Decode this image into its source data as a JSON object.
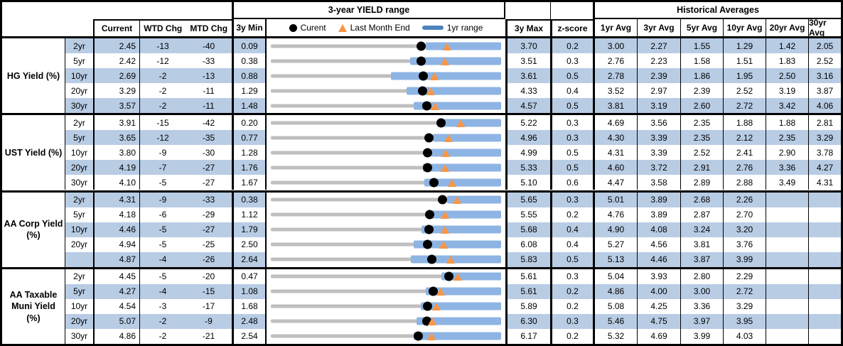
{
  "header": {
    "range_title": "3-year YIELD range",
    "historical_title": "Historical Averages",
    "col_current": "Current",
    "col_wtd": "WTD Chg",
    "col_mtd": "MTD Chg",
    "col_min": "3y Min",
    "col_max": "3y Max",
    "col_zscore": "z-score",
    "avg_cols": [
      "1yr Avg",
      "3yr Avg",
      "5yr Avg",
      "10yr Avg",
      "20yr Avg",
      "30yr Avg"
    ],
    "legend": {
      "current": "Curent",
      "last_month_end": "Last Month End",
      "range": "1yr range"
    }
  },
  "colors": {
    "stripe": "#B8CCE4",
    "range_bar": "#8EB4E3",
    "legend_dash": "#4F81BD",
    "triangle": "#F79646",
    "track": "#BFBFBF",
    "dot": "#000000"
  },
  "chart_data": {
    "type": "table",
    "title": "3-year YIELD range",
    "legend_entries": [
      "Curent",
      "Last Month End",
      "1yr range"
    ],
    "row_chart_type": "bullet-range: gray track spans 3y Min..3y Max, blue bar = 1yr range, black dot = Current, orange triangle = Last Month End",
    "sections": [
      {
        "label": "HG Yield (%)",
        "rows": [
          {
            "tenor": "2yr",
            "current": "2.45",
            "wtd_chg": "-13",
            "mtd_chg": "-40",
            "min_3y": "0.09",
            "max_3y": "3.70",
            "z_score": "0.2",
            "avgs": [
              "3.00",
              "2.27",
              "1.55",
              "1.29",
              "1.42",
              "2.05"
            ],
            "last_month_end": 2.85,
            "range_1y": [
              2.52,
              3.7
            ]
          },
          {
            "tenor": "5yr",
            "current": "2.42",
            "wtd_chg": "-12",
            "mtd_chg": "-33",
            "min_3y": "0.38",
            "max_3y": "3.51",
            "z_score": "0.3",
            "avgs": [
              "2.76",
              "2.23",
              "1.58",
              "1.51",
              "1.83",
              "2.52"
            ],
            "last_month_end": 2.75,
            "range_1y": [
              2.27,
              3.51
            ]
          },
          {
            "tenor": "10yr",
            "current": "2.69",
            "wtd_chg": "-2",
            "mtd_chg": "-13",
            "min_3y": "0.88",
            "max_3y": "3.61",
            "z_score": "0.5",
            "avgs": [
              "2.78",
              "2.39",
              "1.86",
              "1.95",
              "2.50",
              "3.16"
            ],
            "last_month_end": 2.82,
            "range_1y": [
              2.3,
              3.61
            ]
          },
          {
            "tenor": "20yr",
            "current": "3.29",
            "wtd_chg": "-2",
            "mtd_chg": "-11",
            "min_3y": "1.29",
            "max_3y": "4.33",
            "z_score": "0.4",
            "avgs": [
              "3.52",
              "2.97",
              "2.39",
              "2.52",
              "3.19",
              "3.87"
            ],
            "last_month_end": 3.4,
            "range_1y": [
              3.08,
              4.33
            ]
          },
          {
            "tenor": "30yr",
            "current": "3.57",
            "wtd_chg": "-2",
            "mtd_chg": "-11",
            "min_3y": "1.48",
            "max_3y": "4.57",
            "z_score": "0.5",
            "avgs": [
              "3.81",
              "3.19",
              "2.60",
              "2.72",
              "3.42",
              "4.06"
            ],
            "last_month_end": 3.68,
            "range_1y": [
              3.4,
              4.57
            ]
          }
        ]
      },
      {
        "label": "UST Yield (%)",
        "rows": [
          {
            "tenor": "2yr",
            "current": "3.91",
            "wtd_chg": "-15",
            "mtd_chg": "-42",
            "min_3y": "0.20",
            "max_3y": "5.22",
            "z_score": "0.3",
            "avgs": [
              "4.69",
              "3.56",
              "2.35",
              "1.88",
              "1.88",
              "2.81"
            ],
            "last_month_end": 4.33,
            "range_1y": [
              3.97,
              5.22
            ]
          },
          {
            "tenor": "5yr",
            "current": "3.65",
            "wtd_chg": "-12",
            "mtd_chg": "-35",
            "min_3y": "0.77",
            "max_3y": "4.96",
            "z_score": "0.3",
            "avgs": [
              "4.30",
              "3.39",
              "2.35",
              "2.12",
              "2.35",
              "3.29"
            ],
            "last_month_end": 4.0,
            "range_1y": [
              3.72,
              4.96
            ]
          },
          {
            "tenor": "10yr",
            "current": "3.80",
            "wtd_chg": "-9",
            "mtd_chg": "-30",
            "min_3y": "1.28",
            "max_3y": "4.99",
            "z_score": "0.5",
            "avgs": [
              "4.31",
              "3.39",
              "2.52",
              "2.41",
              "2.90",
              "3.78"
            ],
            "last_month_end": 4.1,
            "range_1y": [
              3.86,
              4.99
            ]
          },
          {
            "tenor": "20yr",
            "current": "4.19",
            "wtd_chg": "-7",
            "mtd_chg": "-27",
            "min_3y": "1.76",
            "max_3y": "5.33",
            "z_score": "0.5",
            "avgs": [
              "4.60",
              "3.72",
              "2.91",
              "2.76",
              "3.36",
              "4.27"
            ],
            "last_month_end": 4.46,
            "range_1y": [
              4.12,
              5.33
            ]
          },
          {
            "tenor": "30yr",
            "current": "4.10",
            "wtd_chg": "-5",
            "mtd_chg": "-27",
            "min_3y": "1.67",
            "max_3y": "5.10",
            "z_score": "0.6",
            "avgs": [
              "4.47",
              "3.58",
              "2.89",
              "2.88",
              "3.49",
              "4.31"
            ],
            "last_month_end": 4.37,
            "range_1y": [
              3.96,
              5.1
            ]
          }
        ]
      },
      {
        "label": "AA Corp Yield (%)",
        "rows": [
          {
            "tenor": "2yr",
            "current": "4.31",
            "wtd_chg": "-9",
            "mtd_chg": "-33",
            "min_3y": "0.38",
            "max_3y": "5.65",
            "z_score": "0.3",
            "avgs": [
              "5.01",
              "3.89",
              "2.68",
              "2.26",
              "",
              ""
            ],
            "last_month_end": 4.64,
            "range_1y": [
              4.41,
              5.65
            ]
          },
          {
            "tenor": "5yr",
            "current": "4.18",
            "wtd_chg": "-6",
            "mtd_chg": "-29",
            "min_3y": "1.12",
            "max_3y": "5.55",
            "z_score": "0.2",
            "avgs": [
              "4.76",
              "3.89",
              "2.87",
              "2.70",
              "",
              ""
            ],
            "last_month_end": 4.47,
            "range_1y": [
              4.14,
              5.55
            ]
          },
          {
            "tenor": "10yr",
            "current": "4.46",
            "wtd_chg": "-5",
            "mtd_chg": "-27",
            "min_3y": "1.79",
            "max_3y": "5.68",
            "z_score": "0.4",
            "avgs": [
              "4.90",
              "4.08",
              "3.24",
              "3.20",
              "",
              ""
            ],
            "last_month_end": 4.73,
            "range_1y": [
              4.34,
              5.68
            ]
          },
          {
            "tenor": "20yr",
            "current": "4.94",
            "wtd_chg": "-5",
            "mtd_chg": "-25",
            "min_3y": "2.50",
            "max_3y": "6.08",
            "z_score": "0.4",
            "avgs": [
              "5.27",
              "4.56",
              "3.81",
              "3.76",
              "",
              ""
            ],
            "last_month_end": 5.19,
            "range_1y": [
              4.72,
              6.08
            ]
          },
          {
            "tenor": "",
            "current": "4.87",
            "wtd_chg": "-4",
            "mtd_chg": "-26",
            "min_3y": "2.64",
            "max_3y": "5.83",
            "z_score": "0.5",
            "avgs": [
              "5.13",
              "4.46",
              "3.87",
              "3.99",
              "",
              ""
            ],
            "last_month_end": 5.13,
            "range_1y": [
              4.58,
              5.83
            ]
          }
        ]
      },
      {
        "label": "AA Taxable Muni Yield (%)",
        "rows": [
          {
            "tenor": "2yr",
            "current": "4.45",
            "wtd_chg": "-5",
            "mtd_chg": "-20",
            "min_3y": "0.47",
            "max_3y": "5.61",
            "z_score": "0.3",
            "avgs": [
              "5.04",
              "3.93",
              "2.80",
              "2.29",
              "",
              ""
            ],
            "last_month_end": 4.65,
            "range_1y": [
              4.27,
              5.61
            ]
          },
          {
            "tenor": "5yr",
            "current": "4.27",
            "wtd_chg": "-4",
            "mtd_chg": "-15",
            "min_3y": "1.08",
            "max_3y": "5.61",
            "z_score": "0.2",
            "avgs": [
              "4.86",
              "4.00",
              "3.00",
              "2.72",
              "",
              ""
            ],
            "last_month_end": 4.42,
            "range_1y": [
              4.13,
              5.61
            ]
          },
          {
            "tenor": "10yr",
            "current": "4.54",
            "wtd_chg": "-3",
            "mtd_chg": "-17",
            "min_3y": "1.68",
            "max_3y": "5.89",
            "z_score": "0.2",
            "avgs": [
              "5.08",
              "4.25",
              "3.36",
              "3.29",
              "",
              ""
            ],
            "last_month_end": 4.71,
            "range_1y": [
              4.42,
              5.89
            ]
          },
          {
            "tenor": "20yr",
            "current": "5.07",
            "wtd_chg": "-2",
            "mtd_chg": "-9",
            "min_3y": "2.48",
            "max_3y": "6.30",
            "z_score": "0.3",
            "avgs": [
              "5.46",
              "4.75",
              "3.97",
              "3.95",
              "",
              ""
            ],
            "last_month_end": 5.16,
            "range_1y": [
              4.9,
              6.3
            ]
          },
          {
            "tenor": "30yr",
            "current": "4.86",
            "wtd_chg": "-2",
            "mtd_chg": "-21",
            "min_3y": "2.54",
            "max_3y": "6.17",
            "z_score": "0.2",
            "avgs": [
              "5.32",
              "4.69",
              "3.99",
              "4.03",
              "",
              ""
            ],
            "last_month_end": 5.07,
            "range_1y": [
              4.79,
              6.17
            ]
          }
        ]
      }
    ]
  }
}
